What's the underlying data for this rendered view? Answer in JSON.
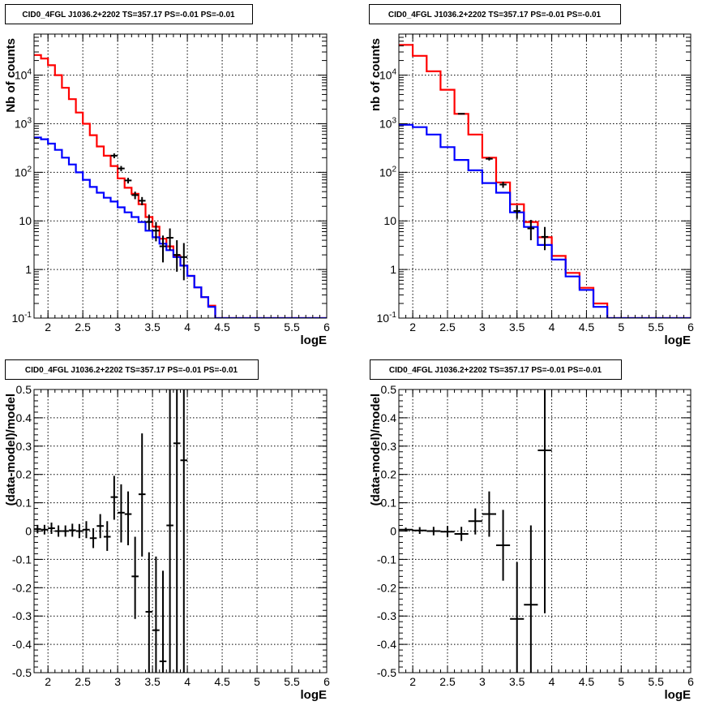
{
  "panel_title": "CID0_4FGL J1036.2+2202 TS=357.17 PS=-0.01 PS=-0.01",
  "chart_data": [
    {
      "id": "tl",
      "type": "line",
      "title": "CID0_4FGL J1036.2+2202 TS=357.17 PS=-0.01 PS=-0.01",
      "xlabel": "logE",
      "ylabel": "Nb of counts",
      "yscale": "log",
      "xlim": [
        1.8,
        6.0
      ],
      "ylim": [
        0.1,
        70000
      ],
      "grid": true,
      "x_ticks": [
        "2",
        "2.5",
        "3",
        "3.5",
        "4",
        "4.5",
        "5",
        "5.5",
        "6"
      ],
      "y_ticks": [
        "10^-1",
        "1",
        "10",
        "10^2",
        "10^3",
        "10^4"
      ],
      "series": [
        {
          "color": "#ff0000",
          "style": "step",
          "edges": [
            1.8,
            1.9,
            2.0,
            2.1,
            2.2,
            2.3,
            2.4,
            2.5,
            2.6,
            2.7,
            2.8,
            2.9,
            3.0,
            3.1,
            3.2,
            3.3,
            3.4,
            3.5,
            3.6,
            3.7,
            3.8,
            3.9,
            4.0,
            4.1,
            4.2,
            4.3,
            4.4,
            4.5,
            4.6,
            4.7,
            4.8,
            4.9,
            5.0,
            5.1,
            5.2,
            5.3,
            5.4,
            5.5,
            5.6,
            5.7,
            5.8,
            5.9,
            6.0
          ],
          "values": [
            26000,
            22000,
            16000,
            10000,
            5500,
            3200,
            1700,
            1000,
            580,
            340,
            220,
            135,
            75,
            48,
            36,
            22,
            12,
            7.6,
            4.3,
            3.0,
            1.9,
            1.2,
            0.74,
            0.43,
            0.27,
            0.18,
            0.1,
            0.1,
            0.1,
            0.1,
            0.1,
            0.1,
            0.1,
            0.1,
            0.1,
            0.1,
            0.1,
            0.1,
            0.1,
            0.1,
            0.1,
            0.1
          ]
        },
        {
          "color": "#0000ff",
          "style": "step",
          "edges": [
            1.8,
            1.9,
            2.0,
            2.1,
            2.2,
            2.3,
            2.4,
            2.5,
            2.6,
            2.7,
            2.8,
            2.9,
            3.0,
            3.1,
            3.2,
            3.3,
            3.4,
            3.5,
            3.6,
            3.7,
            3.8,
            3.9,
            4.0,
            4.1,
            4.2,
            4.3,
            4.4,
            4.5,
            4.6,
            4.7,
            4.8,
            4.9,
            5.0,
            5.1,
            5.2,
            5.3,
            5.4,
            5.5,
            5.6,
            5.7,
            5.8,
            5.9,
            6.0
          ],
          "values": [
            520,
            480,
            390,
            290,
            200,
            145,
            100,
            70,
            50,
            38,
            30,
            25,
            19,
            15,
            12,
            9.5,
            6.3,
            4.6,
            3.4,
            2.5,
            1.8,
            1.2,
            0.74,
            0.43,
            0.27,
            0.17,
            0.1,
            0.1,
            0.1,
            0.1,
            0.1,
            0.1,
            0.1,
            0.1,
            0.1,
            0.1,
            0.1,
            0.1,
            0.1,
            0.1,
            0.1,
            0.1
          ]
        },
        {
          "color": "#000000",
          "style": "points",
          "points": [
            {
              "x": 2.95,
              "y": 220,
              "ylo": 195,
              "yhi": 245
            },
            {
              "x": 3.05,
              "y": 120,
              "ylo": 105,
              "yhi": 135
            },
            {
              "x": 3.15,
              "y": 68,
              "ylo": 59,
              "yhi": 77
            },
            {
              "x": 3.25,
              "y": 34,
              "ylo": 28,
              "yhi": 40
            },
            {
              "x": 3.35,
              "y": 26,
              "ylo": 21,
              "yhi": 31
            },
            {
              "x": 3.45,
              "y": 9.5,
              "ylo": 6.5,
              "yhi": 13.5
            },
            {
              "x": 3.55,
              "y": 6.3,
              "ylo": 3.8,
              "yhi": 9.5
            },
            {
              "x": 3.65,
              "y": 3.0,
              "ylo": 1.4,
              "yhi": 5.0
            },
            {
              "x": 3.75,
              "y": 4.5,
              "ylo": 2.5,
              "yhi": 7.0
            },
            {
              "x": 3.85,
              "y": 2.0,
              "ylo": 0.9,
              "yhi": 4.0
            },
            {
              "x": 3.95,
              "y": 1.8,
              "ylo": 0.6,
              "yhi": 3.5
            }
          ]
        }
      ]
    },
    {
      "id": "tr",
      "type": "line",
      "title": "CID0_4FGL J1036.2+2202 TS=357.17 PS=-0.01 PS=-0.01",
      "xlabel": "logE",
      "ylabel": "nb of counts",
      "yscale": "log",
      "xlim": [
        1.8,
        6.0
      ],
      "ylim": [
        0.1,
        70000
      ],
      "grid": true,
      "x_ticks": [
        "2",
        "2.5",
        "3",
        "3.5",
        "4",
        "4.5",
        "5",
        "5.5",
        "6"
      ],
      "y_ticks": [
        "10^-1",
        "1",
        "10",
        "10^2",
        "10^3",
        "10^4"
      ],
      "series": [
        {
          "color": "#ff0000",
          "style": "step",
          "edges": [
            1.8,
            2.0,
            2.2,
            2.4,
            2.6,
            2.8,
            3.0,
            3.2,
            3.4,
            3.6,
            3.8,
            4.0,
            4.2,
            4.4,
            4.6,
            4.8,
            5.0,
            5.2,
            5.4,
            5.6,
            5.8,
            6.0
          ],
          "values": [
            42000,
            25000,
            12000,
            5000,
            1600,
            600,
            200,
            62,
            22,
            9.5,
            4.6,
            1.9,
            0.85,
            0.42,
            0.2,
            0.1,
            0.1,
            0.1,
            0.1,
            0.1,
            0.1
          ]
        },
        {
          "color": "#0000ff",
          "style": "step",
          "edges": [
            1.8,
            2.0,
            2.2,
            2.4,
            2.6,
            2.8,
            3.0,
            3.2,
            3.4,
            3.6,
            3.8,
            4.0,
            4.2,
            4.4,
            4.6,
            4.8,
            5.0,
            5.2,
            5.4,
            5.6,
            5.8,
            6.0
          ],
          "values": [
            950,
            850,
            600,
            330,
            180,
            110,
            60,
            38,
            15,
            7.5,
            3.2,
            1.6,
            0.72,
            0.38,
            0.17,
            0.1,
            0.1,
            0.1,
            0.1,
            0.1,
            0.1
          ]
        },
        {
          "color": "#000000",
          "style": "points",
          "points": [
            {
              "x": 2.7,
              "y": 1600,
              "ylo": 1550,
              "yhi": 1650
            },
            {
              "x": 3.1,
              "y": 190,
              "ylo": 175,
              "yhi": 205
            },
            {
              "x": 3.3,
              "y": 56,
              "ylo": 48,
              "yhi": 64
            },
            {
              "x": 3.5,
              "y": 16,
              "ylo": 11,
              "yhi": 21
            },
            {
              "x": 3.7,
              "y": 7.0,
              "ylo": 4.0,
              "yhi": 10.5
            },
            {
              "x": 3.9,
              "y": 4.7,
              "ylo": 2.5,
              "yhi": 7.5
            }
          ]
        }
      ]
    },
    {
      "id": "bl",
      "type": "scatter",
      "title": "CID0_4FGL J1036.2+2202 TS=357.17 PS=-0.01 PS=-0.01",
      "xlabel": "logE",
      "ylabel": "(data-model)/model",
      "yscale": "linear",
      "xlim": [
        1.8,
        6.0
      ],
      "ylim": [
        -0.5,
        0.5
      ],
      "grid": true,
      "x_ticks": [
        "2",
        "2.5",
        "3",
        "3.5",
        "4",
        "4.5",
        "5",
        "5.5",
        "6"
      ],
      "y_ticks": [
        "-0.5",
        "-0.4",
        "-0.3",
        "-0.2",
        "-0.1",
        "0",
        "0.1",
        "0.2",
        "0.3",
        "0.4",
        "0.5"
      ],
      "series": [
        {
          "color": "#000000",
          "style": "points",
          "xerr": 0.05,
          "points": [
            {
              "x": 1.85,
              "y": 0.007,
              "ylo": -0.008,
              "yhi": 0.022
            },
            {
              "x": 1.95,
              "y": 0.005,
              "ylo": -0.012,
              "yhi": 0.022
            },
            {
              "x": 2.05,
              "y": 0.01,
              "ylo": -0.01,
              "yhi": 0.03
            },
            {
              "x": 2.15,
              "y": 0.0,
              "ylo": -0.02,
              "yhi": 0.02
            },
            {
              "x": 2.25,
              "y": 0.0,
              "ylo": -0.02,
              "yhi": 0.02
            },
            {
              "x": 2.35,
              "y": 0.003,
              "ylo": -0.02,
              "yhi": 0.026
            },
            {
              "x": 2.45,
              "y": 0.0,
              "ylo": -0.025,
              "yhi": 0.025
            },
            {
              "x": 2.55,
              "y": 0.005,
              "ylo": -0.025,
              "yhi": 0.035
            },
            {
              "x": 2.65,
              "y": -0.025,
              "ylo": -0.06,
              "yhi": 0.01
            },
            {
              "x": 2.75,
              "y": 0.018,
              "ylo": -0.025,
              "yhi": 0.06
            },
            {
              "x": 2.85,
              "y": -0.02,
              "ylo": -0.07,
              "yhi": 0.035
            },
            {
              "x": 2.95,
              "y": 0.12,
              "ylo": 0.04,
              "yhi": 0.195
            },
            {
              "x": 3.05,
              "y": 0.065,
              "ylo": -0.04,
              "yhi": 0.165
            },
            {
              "x": 3.15,
              "y": 0.06,
              "ylo": -0.05,
              "yhi": 0.14
            },
            {
              "x": 3.25,
              "y": -0.16,
              "ylo": -0.31,
              "yhi": -0.02
            },
            {
              "x": 3.35,
              "y": 0.13,
              "ylo": -0.09,
              "yhi": 0.345
            },
            {
              "x": 3.45,
              "y": -0.285,
              "ylo": -0.5,
              "yhi": -0.075
            },
            {
              "x": 3.55,
              "y": -0.35,
              "ylo": -0.5,
              "yhi": -0.09
            },
            {
              "x": 3.65,
              "y": -0.46,
              "ylo": -0.5,
              "yhi": -0.14
            },
            {
              "x": 3.75,
              "y": 0.02,
              "ylo": -0.5,
              "yhi": 0.5
            },
            {
              "x": 3.85,
              "y": 0.31,
              "ylo": -0.5,
              "yhi": 0.5
            },
            {
              "x": 3.95,
              "y": 0.25,
              "ylo": -0.5,
              "yhi": 0.5
            }
          ]
        }
      ]
    },
    {
      "id": "br",
      "type": "scatter",
      "title": "CID0_4FGL J1036.2+2202 TS=357.17 PS=-0.01 PS=-0.01",
      "xlabel": "logE",
      "ylabel": "(data-model)/model",
      "yscale": "linear",
      "xlim": [
        1.8,
        6.0
      ],
      "ylim": [
        -0.5,
        0.5
      ],
      "grid": true,
      "x_ticks": [
        "2",
        "2.5",
        "3",
        "3.5",
        "4",
        "4.5",
        "5",
        "5.5",
        "6"
      ],
      "y_ticks": [
        "-0.5",
        "-0.4",
        "-0.3",
        "-0.2",
        "-0.1",
        "0",
        "0.1",
        "0.2",
        "0.3",
        "0.4",
        "0.5"
      ],
      "series": [
        {
          "color": "#000000",
          "style": "points",
          "xerr": 0.1,
          "points": [
            {
              "x": 1.9,
              "y": 0.005,
              "ylo": -0.002,
              "yhi": 0.012
            },
            {
              "x": 2.1,
              "y": 0.002,
              "ylo": -0.01,
              "yhi": 0.014
            },
            {
              "x": 2.3,
              "y": 0.0,
              "ylo": -0.015,
              "yhi": 0.015
            },
            {
              "x": 2.5,
              "y": -0.002,
              "ylo": -0.022,
              "yhi": 0.018
            },
            {
              "x": 2.7,
              "y": -0.01,
              "ylo": -0.035,
              "yhi": 0.015
            },
            {
              "x": 2.9,
              "y": 0.035,
              "ylo": -0.012,
              "yhi": 0.08
            },
            {
              "x": 3.1,
              "y": 0.06,
              "ylo": -0.02,
              "yhi": 0.14
            },
            {
              "x": 3.3,
              "y": -0.05,
              "ylo": -0.175,
              "yhi": 0.075
            },
            {
              "x": 3.5,
              "y": -0.31,
              "ylo": -0.5,
              "yhi": -0.11
            },
            {
              "x": 3.7,
              "y": -0.26,
              "ylo": -0.5,
              "yhi": 0.02
            },
            {
              "x": 3.9,
              "y": 0.285,
              "ylo": -0.29,
              "yhi": 0.5
            }
          ]
        }
      ]
    }
  ]
}
